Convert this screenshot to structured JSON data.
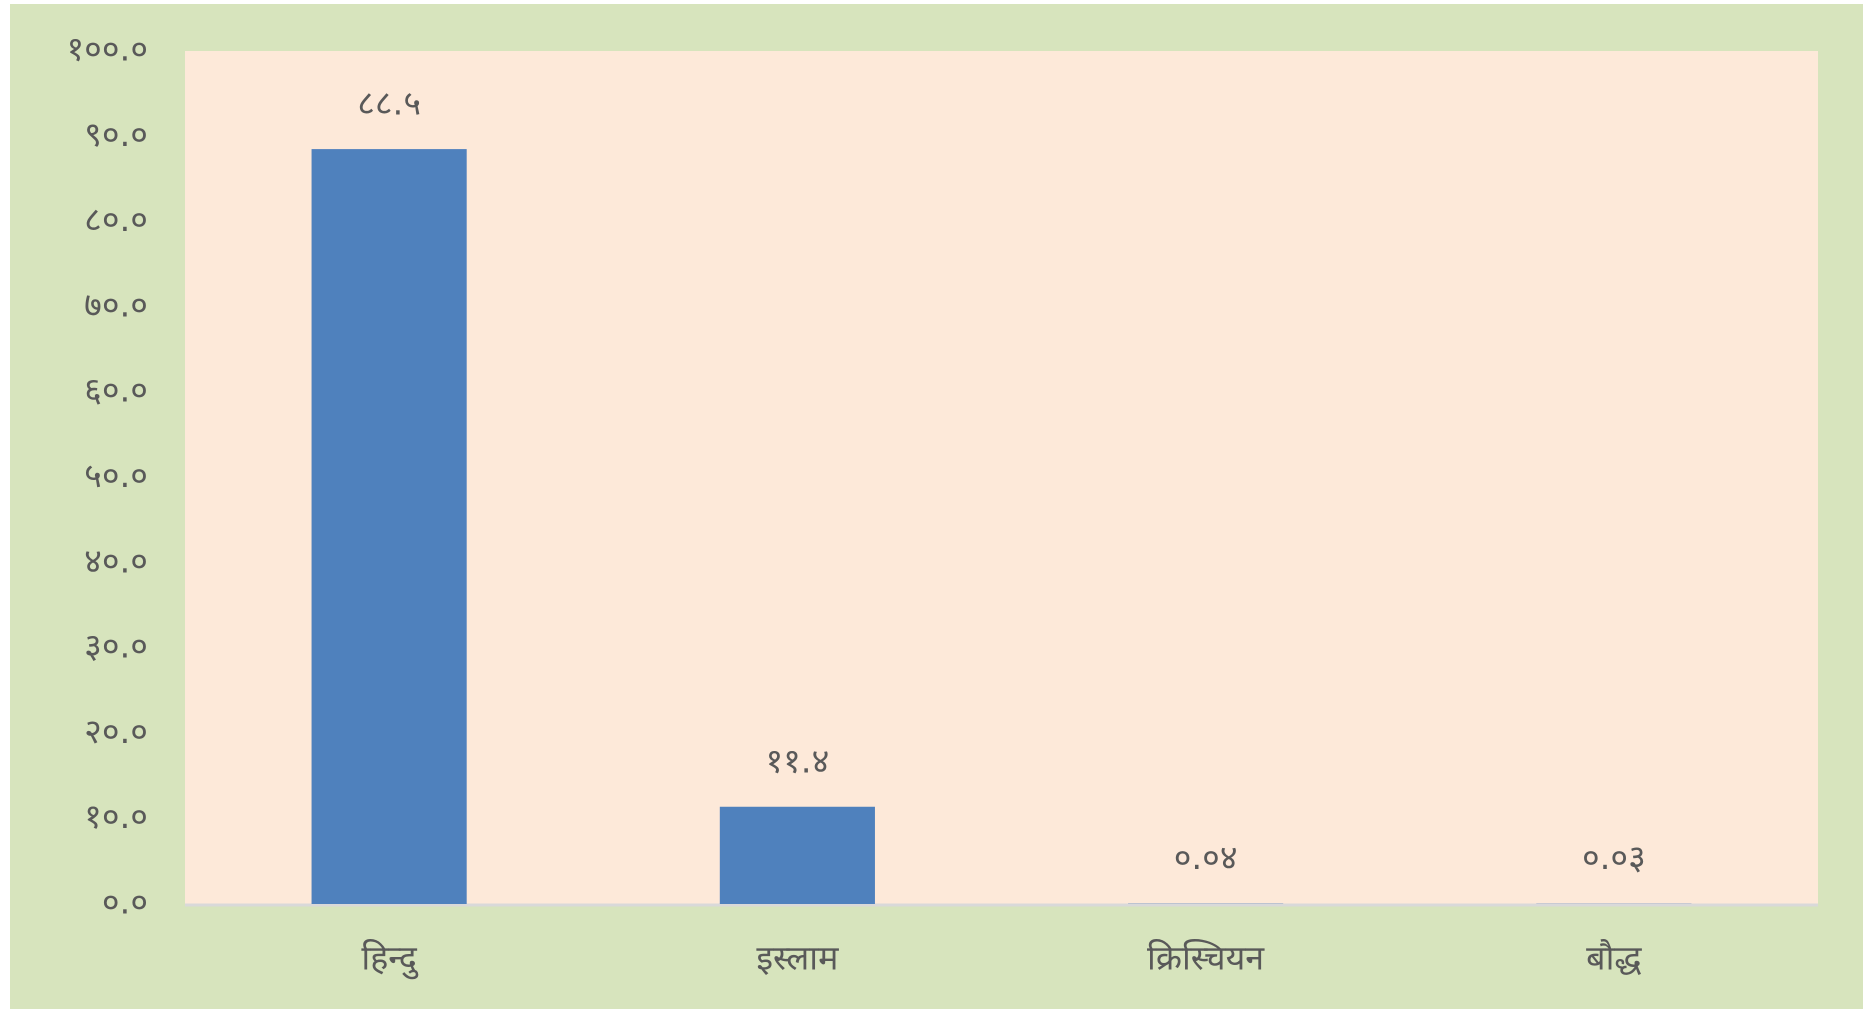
{
  "chart_data": {
    "type": "bar",
    "categories": [
      "हिन्दु",
      "इस्लाम",
      "क्रिस्चियन",
      "बौद्ध"
    ],
    "values": [
      88.5,
      11.4,
      0.04,
      0.03
    ],
    "value_labels": [
      "८८.५",
      "११.४",
      "०.०४",
      "०.०३"
    ],
    "color": "#4f81bd",
    "ylim": [
      0,
      100
    ],
    "yticks": [
      {
        "value": 0,
        "label": "०.०"
      },
      {
        "value": 10,
        "label": "१०.०"
      },
      {
        "value": 20,
        "label": "२०.०"
      },
      {
        "value": 30,
        "label": "३०.०"
      },
      {
        "value": 40,
        "label": "४०.०"
      },
      {
        "value": 50,
        "label": "५०.०"
      },
      {
        "value": 60,
        "label": "६०.०"
      },
      {
        "value": 70,
        "label": "७०.०"
      },
      {
        "value": 80,
        "label": "८०.०"
      },
      {
        "value": 90,
        "label": "९०.०"
      },
      {
        "value": 100,
        "label": "१००.०"
      }
    ],
    "grid": false
  }
}
